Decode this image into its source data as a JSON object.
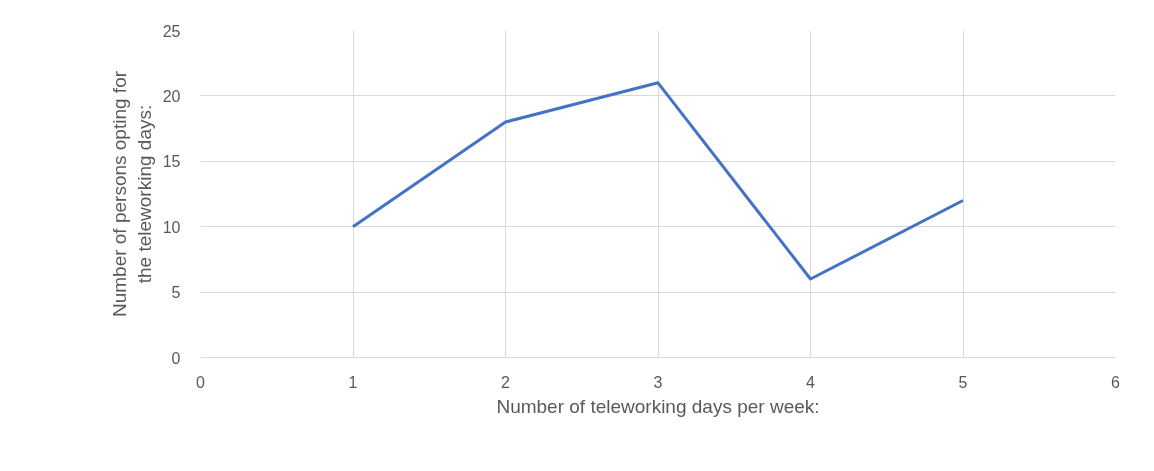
{
  "chart_data": {
    "type": "line",
    "xlabel": "Number of teleworking days per week:",
    "ylabel": "Number of persons opting for the teleworking days:",
    "x": [
      1,
      2,
      3,
      4,
      5
    ],
    "series": [
      {
        "color": "#4472c4",
        "values": [
          10,
          18,
          21,
          6,
          12
        ]
      }
    ],
    "xlim": [
      0,
      6
    ],
    "xticks": [
      0,
      1,
      2,
      3,
      4,
      5,
      6
    ],
    "ylim": [
      0,
      25
    ],
    "yticks": [
      0,
      5,
      10,
      15,
      20,
      25
    ],
    "grid": true,
    "marker": "none",
    "line_style": "solid"
  }
}
